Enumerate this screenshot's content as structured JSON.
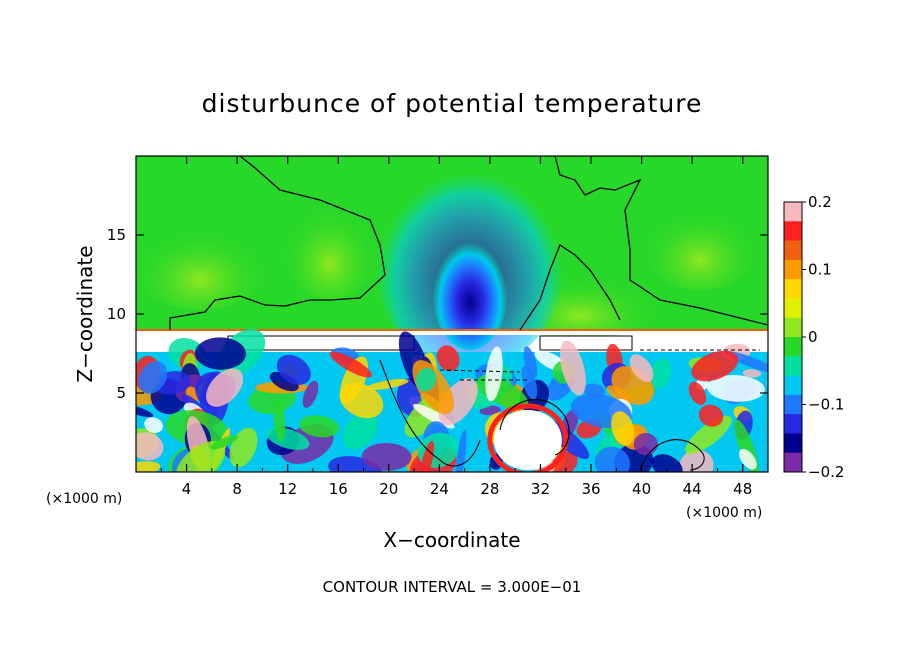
{
  "chart_data": {
    "type": "heatmap",
    "title": "disturbunce of potential temperature",
    "xlabel": "X−coordinate",
    "ylabel": "Z−coordinate",
    "x_unit_left": "(×1000 m)",
    "x_unit_right": "(×1000 m)",
    "footer": "CONTOUR INTERVAL = 3.000E−01",
    "xlim": [
      0,
      50
    ],
    "ylim": [
      0,
      20
    ],
    "xticks": [
      4,
      8,
      12,
      16,
      20,
      24,
      28,
      32,
      36,
      40,
      44,
      48
    ],
    "xtick_labels": [
      "4",
      "8",
      "12",
      "16",
      "20",
      "24",
      "28",
      "32",
      "36",
      "40",
      "44",
      "48"
    ],
    "yticks": [
      5,
      10,
      15
    ],
    "ytick_labels": [
      "5",
      "10",
      "15"
    ],
    "colorbar": {
      "min": -0.2,
      "max": 0.2,
      "ticks": [
        0.2,
        0.1,
        0,
        -0.1,
        -0.2
      ],
      "tick_labels": [
        "0.2",
        "0.1",
        "0",
        "−0.1",
        "−0.2"
      ],
      "colors": [
        "#f7b8c0",
        "#ff2020",
        "#f06010",
        "#ff9900",
        "#ffd700",
        "#e0f000",
        "#90e820",
        "#28d828",
        "#00e0a0",
        "#00c8f0",
        "#1e78ff",
        "#2828e0",
        "#000090",
        "#7a2aa8"
      ]
    },
    "regions": {
      "upper_background": 0.0,
      "upper_plume_center_x": 26,
      "upper_plume_value": -0.15,
      "layer_base_z": 9,
      "lower_mix_range": [
        -0.2,
        0.2
      ]
    }
  }
}
